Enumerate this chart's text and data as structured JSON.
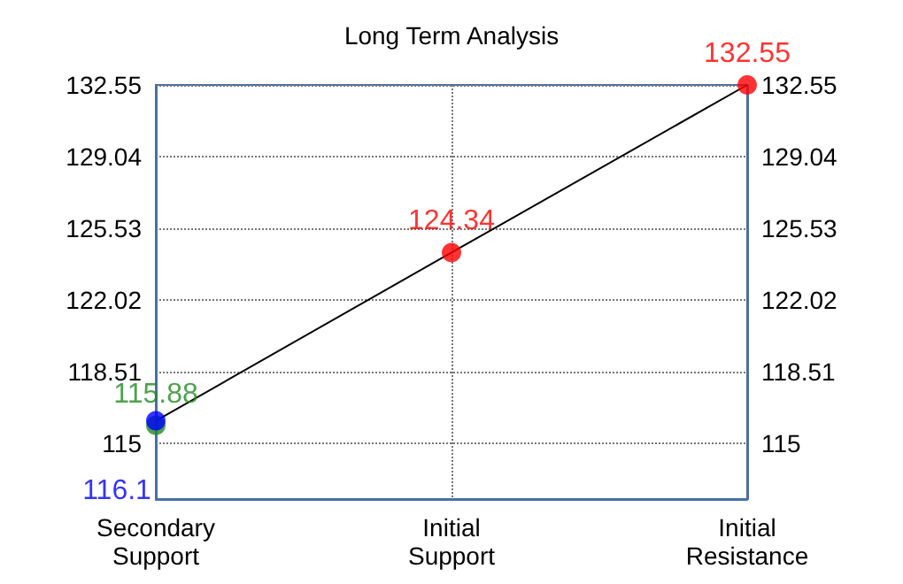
{
  "chart_data": {
    "type": "line",
    "title": "Long Term Analysis",
    "categories": [
      "Secondary Support",
      "Initial Support",
      "Initial Resistance"
    ],
    "series": [
      {
        "color": "#000000",
        "values": [
          116.1,
          124.34,
          132.55
        ],
        "marker": "none"
      },
      {
        "type": "scatter",
        "color": "#228b22",
        "values": [
          115.88,
          null,
          null
        ],
        "value_labels": [
          "115.88",
          null,
          null
        ]
      },
      {
        "type": "scatter",
        "color": "#0000ff",
        "values": [
          116.1,
          null,
          null
        ],
        "value_labels": [
          "116.1",
          null,
          null
        ]
      },
      {
        "type": "scatter",
        "color": "#ff0000",
        "values": [
          null,
          124.34,
          132.55
        ],
        "value_labels": [
          null,
          "124.34",
          "132.55"
        ]
      }
    ],
    "ylim": [
      112.27,
      132.55
    ],
    "yticks": [
      115,
      118.51,
      122.02,
      125.53,
      129.04,
      132.55
    ],
    "y2lim": [
      112.27,
      132.55
    ],
    "y2ticks": [
      115,
      118.51,
      122.02,
      125.53,
      129.04,
      132.55
    ],
    "grid": true,
    "marker": "circle"
  }
}
